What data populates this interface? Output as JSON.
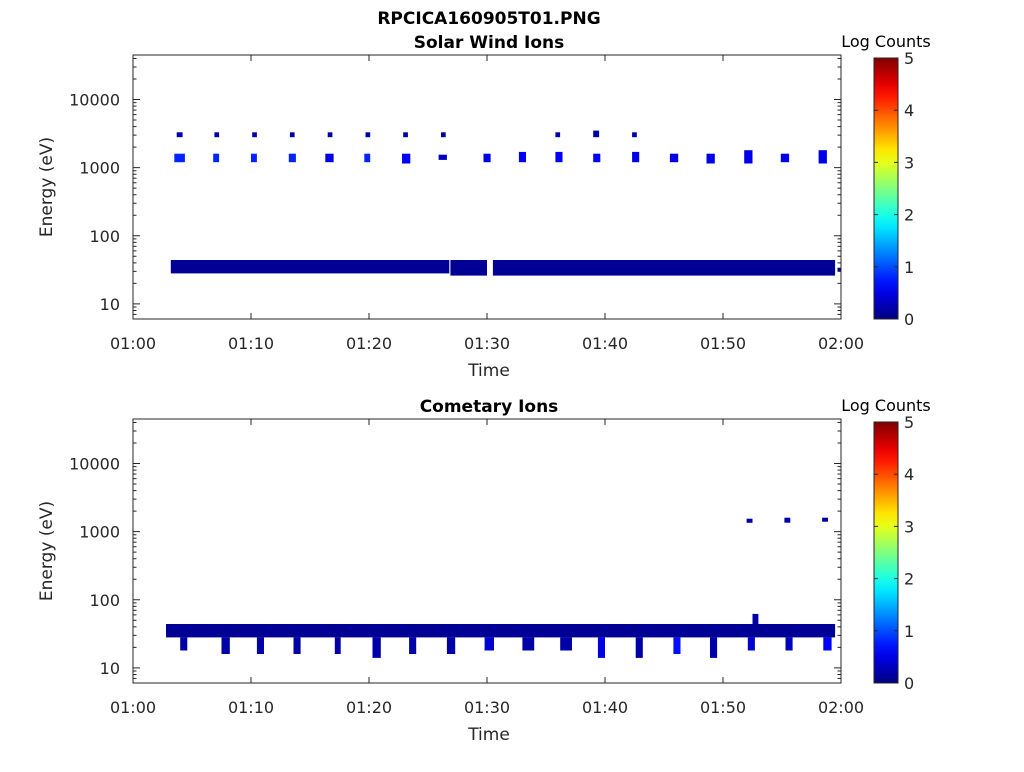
{
  "figure": {
    "filename": "RPCICA160905T01.PNG"
  },
  "colorbar": {
    "label": "Log Counts",
    "range": [
      0,
      5
    ],
    "ticks": [
      "0",
      "1",
      "2",
      "3",
      "4",
      "5"
    ],
    "colormap": "jet"
  },
  "chart_data": [
    {
      "type": "heatmap",
      "title": "Solar Wind Ions",
      "xlabel": "Time",
      "ylabel": "Energy (eV)",
      "x_ticks": [
        "01:00",
        "01:10",
        "01:20",
        "01:30",
        "01:40",
        "01:50",
        "02:00"
      ],
      "x_range_minutes": [
        0,
        60
      ],
      "y_scale": "log",
      "y_ticks": [
        "10",
        "100",
        "1000",
        "10000"
      ],
      "y_range_eV": [
        6,
        45000
      ],
      "colorbar_label": "Log Counts",
      "z_range": [
        0,
        5
      ],
      "cells": [
        {
          "t_start": 3.7,
          "t_end": 4.2,
          "E_low": 2800,
          "E_high": 3300,
          "logcounts": 0.2
        },
        {
          "t_start": 6.9,
          "t_end": 7.3,
          "E_low": 2800,
          "E_high": 3300,
          "logcounts": 0.2
        },
        {
          "t_start": 10.1,
          "t_end": 10.5,
          "E_low": 2800,
          "E_high": 3300,
          "logcounts": 0.2
        },
        {
          "t_start": 13.3,
          "t_end": 13.7,
          "E_low": 2800,
          "E_high": 3300,
          "logcounts": 0.2
        },
        {
          "t_start": 16.5,
          "t_end": 16.9,
          "E_low": 2800,
          "E_high": 3300,
          "logcounts": 0.2
        },
        {
          "t_start": 19.7,
          "t_end": 20.1,
          "E_low": 2800,
          "E_high": 3300,
          "logcounts": 0.2
        },
        {
          "t_start": 22.9,
          "t_end": 23.3,
          "E_low": 2800,
          "E_high": 3300,
          "logcounts": 0.2
        },
        {
          "t_start": 26.1,
          "t_end": 26.5,
          "E_low": 2800,
          "E_high": 3300,
          "logcounts": 0.2
        },
        {
          "t_start": 35.8,
          "t_end": 36.2,
          "E_low": 2800,
          "E_high": 3300,
          "logcounts": 0.2
        },
        {
          "t_start": 39.0,
          "t_end": 39.5,
          "E_low": 2800,
          "E_high": 3500,
          "logcounts": 0.2
        },
        {
          "t_start": 42.3,
          "t_end": 42.7,
          "E_low": 2800,
          "E_high": 3300,
          "logcounts": 0.2
        },
        {
          "t_start": 3.5,
          "t_end": 4.4,
          "E_low": 1200,
          "E_high": 1600,
          "logcounts": 0.8
        },
        {
          "t_start": 6.8,
          "t_end": 7.3,
          "E_low": 1200,
          "E_high": 1600,
          "logcounts": 0.8
        },
        {
          "t_start": 10.0,
          "t_end": 10.5,
          "E_low": 1200,
          "E_high": 1600,
          "logcounts": 0.8
        },
        {
          "t_start": 13.2,
          "t_end": 13.8,
          "E_low": 1200,
          "E_high": 1600,
          "logcounts": 0.8
        },
        {
          "t_start": 16.3,
          "t_end": 17.0,
          "E_low": 1200,
          "E_high": 1600,
          "logcounts": 0.5
        },
        {
          "t_start": 19.6,
          "t_end": 20.1,
          "E_low": 1200,
          "E_high": 1600,
          "logcounts": 0.8
        },
        {
          "t_start": 22.8,
          "t_end": 23.5,
          "E_low": 1150,
          "E_high": 1600,
          "logcounts": 0.6
        },
        {
          "t_start": 25.9,
          "t_end": 26.6,
          "E_low": 1300,
          "E_high": 1550,
          "logcounts": 0.3
        },
        {
          "t_start": 29.7,
          "t_end": 30.3,
          "E_low": 1200,
          "E_high": 1600,
          "logcounts": 0.5
        },
        {
          "t_start": 32.7,
          "t_end": 33.3,
          "E_low": 1200,
          "E_high": 1700,
          "logcounts": 0.6
        },
        {
          "t_start": 35.8,
          "t_end": 36.4,
          "E_low": 1200,
          "E_high": 1700,
          "logcounts": 0.6
        },
        {
          "t_start": 39.0,
          "t_end": 39.6,
          "E_low": 1200,
          "E_high": 1600,
          "logcounts": 0.6
        },
        {
          "t_start": 42.3,
          "t_end": 42.9,
          "E_low": 1200,
          "E_high": 1700,
          "logcounts": 0.5
        },
        {
          "t_start": 45.5,
          "t_end": 46.2,
          "E_low": 1200,
          "E_high": 1600,
          "logcounts": 0.5
        },
        {
          "t_start": 48.6,
          "t_end": 49.3,
          "E_low": 1150,
          "E_high": 1600,
          "logcounts": 0.5
        },
        {
          "t_start": 51.8,
          "t_end": 52.5,
          "E_low": 1150,
          "E_high": 1800,
          "logcounts": 0.5
        },
        {
          "t_start": 54.9,
          "t_end": 55.6,
          "E_low": 1200,
          "E_high": 1600,
          "logcounts": 0.5
        },
        {
          "t_start": 58.1,
          "t_end": 58.8,
          "E_low": 1150,
          "E_high": 1800,
          "logcounts": 0.5
        },
        {
          "t_start": 3.2,
          "t_end": 26.8,
          "E_low": 28,
          "E_high": 44,
          "logcounts": 0.1
        },
        {
          "t_start": 26.9,
          "t_end": 30.0,
          "E_low": 26,
          "E_high": 44,
          "logcounts": 0.1
        },
        {
          "t_start": 30.5,
          "t_end": 59.5,
          "E_low": 26,
          "E_high": 44,
          "logcounts": 0.1
        },
        {
          "t_start": 59.7,
          "t_end": 60.0,
          "E_low": 30,
          "E_high": 34,
          "logcounts": 0.1
        }
      ]
    },
    {
      "type": "heatmap",
      "title": "Cometary Ions",
      "xlabel": "Time",
      "ylabel": "Energy (eV)",
      "x_ticks": [
        "01:00",
        "01:10",
        "01:20",
        "01:30",
        "01:40",
        "01:50",
        "02:00"
      ],
      "x_range_minutes": [
        0,
        60
      ],
      "y_scale": "log",
      "y_ticks": [
        "10",
        "100",
        "1000",
        "10000"
      ],
      "y_range_eV": [
        6,
        45000
      ],
      "colorbar_label": "Log Counts",
      "z_range": [
        0,
        5
      ],
      "cells": [
        {
          "t_start": 52.0,
          "t_end": 52.5,
          "E_low": 1350,
          "E_high": 1550,
          "logcounts": 0.2
        },
        {
          "t_start": 55.2,
          "t_end": 55.7,
          "E_low": 1350,
          "E_high": 1600,
          "logcounts": 0.2
        },
        {
          "t_start": 58.4,
          "t_end": 58.9,
          "E_low": 1400,
          "E_high": 1600,
          "logcounts": 0.2
        },
        {
          "t_start": 2.8,
          "t_end": 59.5,
          "E_low": 28,
          "E_high": 44,
          "logcounts": 0.1
        },
        {
          "t_start": 4.0,
          "t_end": 4.6,
          "E_low": 18,
          "E_high": 28,
          "logcounts": 0.2
        },
        {
          "t_start": 7.5,
          "t_end": 8.2,
          "E_low": 16,
          "E_high": 28,
          "logcounts": 0.2
        },
        {
          "t_start": 10.5,
          "t_end": 11.1,
          "E_low": 16,
          "E_high": 28,
          "logcounts": 0.2
        },
        {
          "t_start": 13.6,
          "t_end": 14.2,
          "E_low": 16,
          "E_high": 28,
          "logcounts": 0.2
        },
        {
          "t_start": 17.1,
          "t_end": 17.6,
          "E_low": 16,
          "E_high": 28,
          "logcounts": 0.2
        },
        {
          "t_start": 20.3,
          "t_end": 21.0,
          "E_low": 14,
          "E_high": 28,
          "logcounts": 0.2
        },
        {
          "t_start": 23.4,
          "t_end": 24.0,
          "E_low": 16,
          "E_high": 28,
          "logcounts": 0.2
        },
        {
          "t_start": 26.6,
          "t_end": 27.3,
          "E_low": 16,
          "E_high": 28,
          "logcounts": 0.2
        },
        {
          "t_start": 29.8,
          "t_end": 30.6,
          "E_low": 18,
          "E_high": 28,
          "logcounts": 0.4
        },
        {
          "t_start": 33.0,
          "t_end": 34.0,
          "E_low": 18,
          "E_high": 28,
          "logcounts": 0.2
        },
        {
          "t_start": 36.2,
          "t_end": 37.2,
          "E_low": 18,
          "E_high": 28,
          "logcounts": 0.2
        },
        {
          "t_start": 39.4,
          "t_end": 40.0,
          "E_low": 14,
          "E_high": 28,
          "logcounts": 0.5
        },
        {
          "t_start": 42.6,
          "t_end": 43.2,
          "E_low": 14,
          "E_high": 28,
          "logcounts": 0.2
        },
        {
          "t_start": 45.8,
          "t_end": 46.4,
          "E_low": 16,
          "E_high": 28,
          "logcounts": 0.7
        },
        {
          "t_start": 48.9,
          "t_end": 49.5,
          "E_low": 14,
          "E_high": 28,
          "logcounts": 0.2
        },
        {
          "t_start": 52.1,
          "t_end": 52.7,
          "E_low": 18,
          "E_high": 28,
          "logcounts": 0.4
        },
        {
          "t_start": 55.3,
          "t_end": 55.9,
          "E_low": 18,
          "E_high": 28,
          "logcounts": 0.3
        },
        {
          "t_start": 58.5,
          "t_end": 59.2,
          "E_low": 18,
          "E_high": 28,
          "logcounts": 0.6
        },
        {
          "t_start": 52.5,
          "t_end": 53.0,
          "E_low": 44,
          "E_high": 62,
          "logcounts": 0.2
        }
      ]
    }
  ]
}
